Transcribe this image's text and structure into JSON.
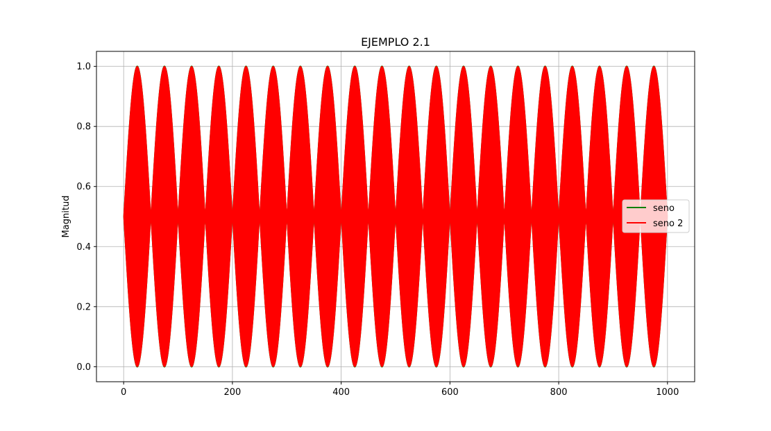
{
  "chart_data": {
    "type": "line",
    "title": "EJEMPLO 2.1",
    "xlabel": "",
    "ylabel": "Magnitud",
    "xlim": [
      -50,
      1050
    ],
    "ylim": [
      -0.05,
      1.05
    ],
    "x_ticks": [
      0,
      200,
      400,
      600,
      800,
      1000
    ],
    "y_ticks": [
      0.0,
      0.2,
      0.4,
      0.6,
      0.8,
      1.0
    ],
    "x_tick_labels": [
      "0",
      "200",
      "400",
      "600",
      "800",
      "1000"
    ],
    "y_tick_labels": [
      "0.0",
      "0.2",
      "0.4",
      "0.6",
      "0.8",
      "1.0"
    ],
    "grid": true,
    "legend_position": "center-right",
    "signal": {
      "x_start": 0,
      "x_end": 1000,
      "offset": 0.5,
      "amplitude": 0.5,
      "envelope_lobes": 20,
      "envelope_peaks_x": [
        25,
        75,
        125,
        175,
        225,
        275,
        325,
        375,
        425,
        475,
        525,
        575,
        625,
        675,
        725,
        775,
        825,
        875,
        925,
        975
      ],
      "envelope_zeros_x": [
        0,
        50,
        100,
        150,
        200,
        250,
        300,
        350,
        400,
        450,
        500,
        550,
        600,
        650,
        700,
        750,
        800,
        850,
        900,
        950,
        1000
      ],
      "y_min": 0.0,
      "y_max": 1.0
    },
    "series": [
      {
        "name": "seno",
        "color": "#008000"
      },
      {
        "name": "seno 2",
        "color": "#ff0000"
      }
    ]
  }
}
